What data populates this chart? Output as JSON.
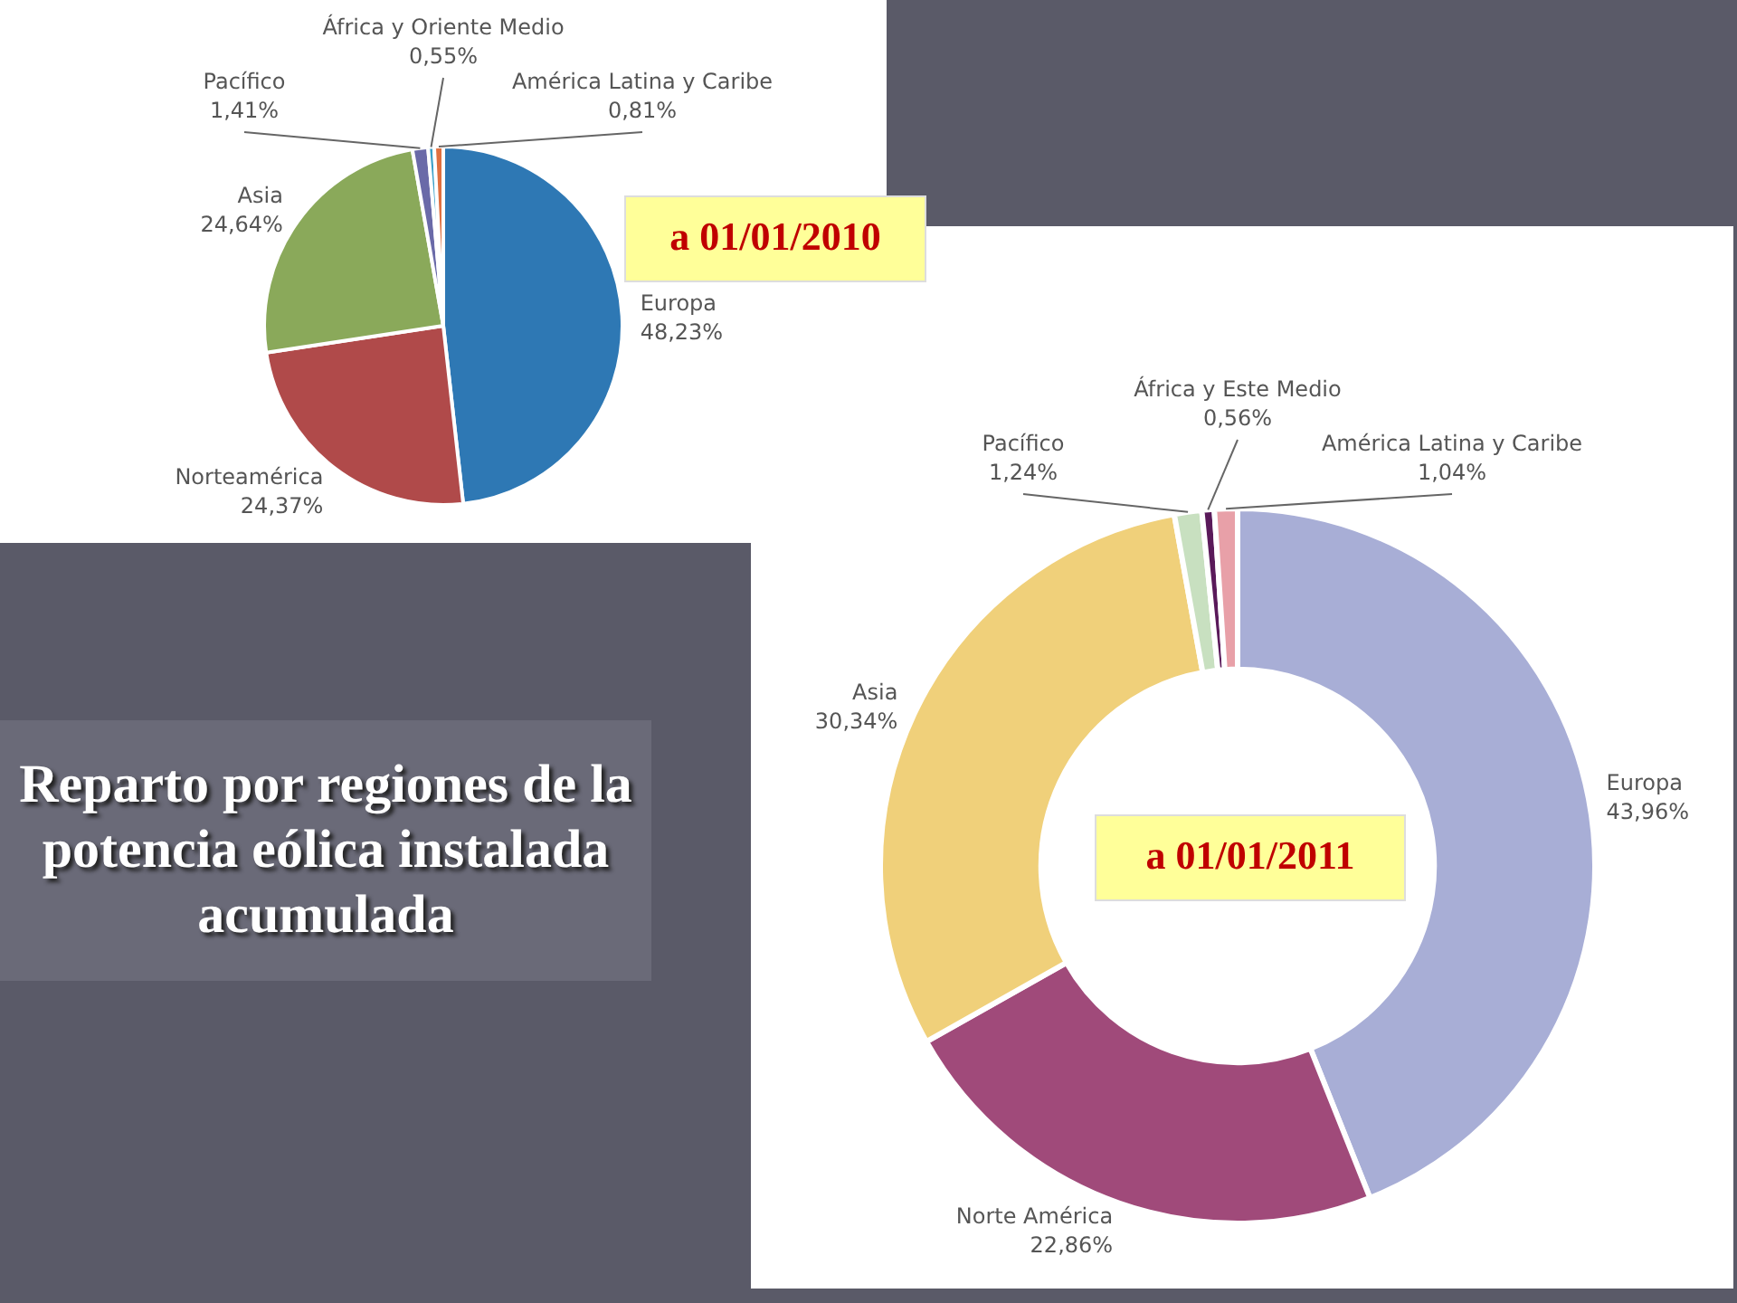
{
  "chart_data": [
    {
      "type": "pie",
      "title": "Reparto por regiones de la potencia eólica instalada acumulada",
      "subtitle": "a 01/01/2010",
      "categories": [
        "Europa",
        "Norteamérica",
        "Asia",
        "Pacífico",
        "África y Oriente Medio",
        "América Latina y Caribe"
      ],
      "values": [
        48.23,
        24.37,
        24.64,
        1.41,
        0.55,
        0.81
      ],
      "colors": [
        "#2e78b4",
        "#b04a4a",
        "#8aa95a",
        "#6a6aa8",
        "#3aa0c8",
        "#e07040"
      ],
      "value_labels": [
        "48,23%",
        "24,37%",
        "24,64%",
        "1,41%",
        "0,55%",
        "0,81%"
      ]
    },
    {
      "type": "donut",
      "title": "a 01/01/2011",
      "categories": [
        "Europa",
        "Norte América",
        "Asia",
        "Pacífico",
        "África y Este Medio",
        "América Latina y Caribe"
      ],
      "values": [
        43.96,
        22.86,
        30.34,
        1.24,
        0.56,
        1.04
      ],
      "colors": [
        "#a8aed6",
        "#a04a7a",
        "#f0d07a",
        "#c8e0c0",
        "#5a1a5a",
        "#e8a0a8"
      ],
      "value_labels": [
        "43,96%",
        "22,86%",
        "30,34%",
        "1,24%",
        "0,56%",
        "1,04%"
      ]
    }
  ]
}
